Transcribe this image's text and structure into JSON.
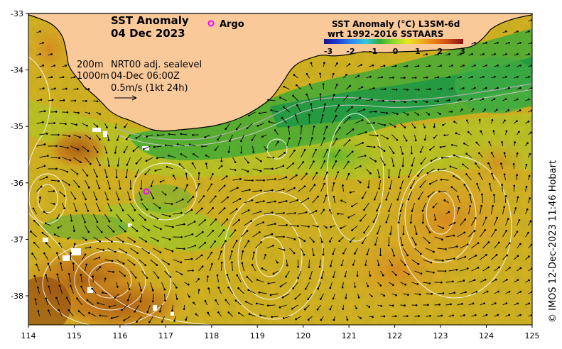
{
  "title_line1": "SST Anomaly",
  "title_line2": "04 Dec 2023",
  "argo_label": "Argo",
  "legend": {
    "title_line1": "SST Anomaly (°C) L3SM-6d",
    "title_line2": "wrt 1992-2016 SSTAARS",
    "ticks": [
      "-3",
      "-2",
      "-1",
      "0",
      "1",
      "2",
      "3"
    ],
    "colors": [
      "#1a0f8c",
      "#1f3fd6",
      "#2a8cf0",
      "#35c8e0",
      "#2fae3a",
      "#8fd82a",
      "#e8e81f",
      "#f0b020",
      "#e87a15",
      "#c8451a",
      "#8a1010"
    ]
  },
  "annotations": {
    "depth1": "200m",
    "depth2": "1000m",
    "product": "NRT00 adj. sealevel",
    "time": "04-Dec 06:00Z",
    "scale": "0.5m/s (1kt 24h)"
  },
  "credit": "© IMOS 12-Dec-2023 11:46 Hobart",
  "x_ticks": [
    "114",
    "115",
    "116",
    "117",
    "118",
    "119",
    "120",
    "121",
    "122",
    "123",
    "124",
    "125"
  ],
  "y_ticks": [
    "-33",
    "-34",
    "-35",
    "-36",
    "-37",
    "-38"
  ],
  "colors": {
    "land": "#f9c99a",
    "coast": "#000000",
    "argo": "#ff00ff"
  }
}
